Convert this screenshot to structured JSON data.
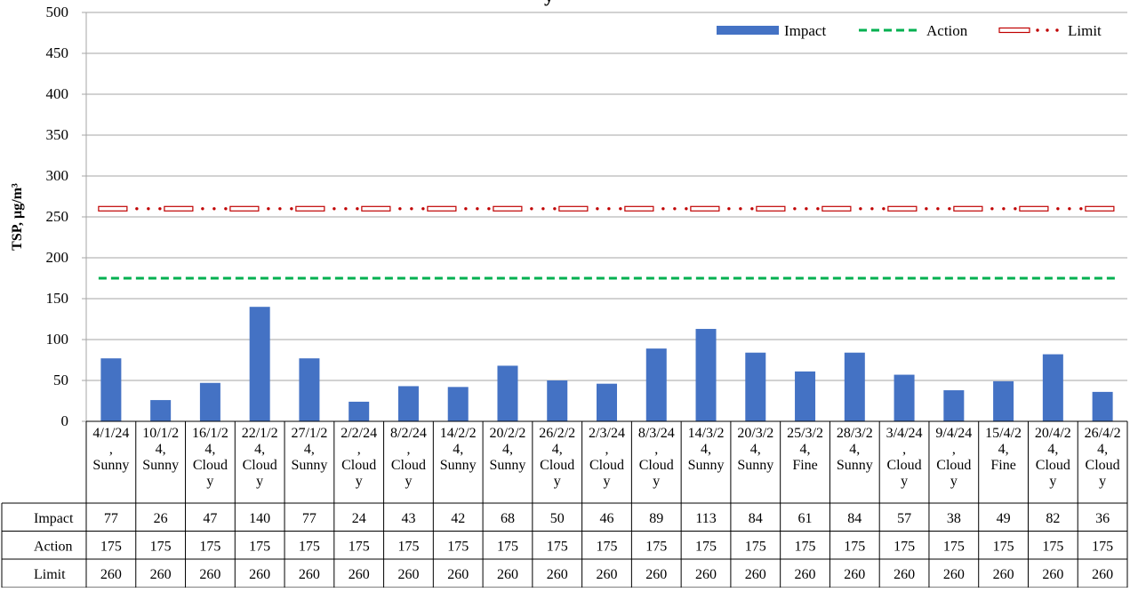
{
  "chart_data": {
    "type": "bar",
    "title": "",
    "ylabel": "TSP, µg/m³",
    "xlabel": "",
    "ylim": [
      0,
      500
    ],
    "yticks": [
      0,
      50,
      100,
      150,
      200,
      250,
      300,
      350,
      400,
      450,
      500
    ],
    "grid": true,
    "legend_position": "top-right",
    "categories": [
      [
        "4/1/24",
        ",",
        "Sunny"
      ],
      [
        "10/1/2",
        "4,",
        "Sunny"
      ],
      [
        "16/1/2",
        "4,",
        "Cloud",
        "y"
      ],
      [
        "22/1/2",
        "4,",
        "Cloud",
        "y"
      ],
      [
        "27/1/2",
        "4,",
        "Sunny"
      ],
      [
        "2/2/24",
        ",",
        "Cloud",
        "y"
      ],
      [
        "8/2/24",
        ",",
        "Cloud",
        "y"
      ],
      [
        "14/2/2",
        "4,",
        "Sunny"
      ],
      [
        "20/2/2",
        "4,",
        "Sunny"
      ],
      [
        "26/2/2",
        "4,",
        "Cloud",
        "y"
      ],
      [
        "2/3/24",
        ",",
        "Cloud",
        "y"
      ],
      [
        "8/3/24",
        ",",
        "Cloud",
        "y"
      ],
      [
        "14/3/2",
        "4,",
        "Sunny"
      ],
      [
        "20/3/2",
        "4,",
        "Sunny"
      ],
      [
        "25/3/2",
        "4,",
        "Fine"
      ],
      [
        "28/3/2",
        "4,",
        "Sunny"
      ],
      [
        "3/4/24",
        ",",
        "Cloud",
        "y"
      ],
      [
        "9/4/24",
        ",",
        "Cloud",
        "y"
      ],
      [
        "15/4/2",
        "4,",
        "Fine"
      ],
      [
        "20/4/2",
        "4,",
        "Cloud",
        "y"
      ],
      [
        "26/4/2",
        "4,",
        "Cloud",
        "y"
      ]
    ],
    "series": [
      {
        "name": "Impact",
        "kind": "bar",
        "color": "#4472C4",
        "values": [
          77,
          26,
          47,
          140,
          77,
          24,
          43,
          42,
          68,
          50,
          46,
          89,
          113,
          84,
          61,
          84,
          57,
          38,
          49,
          82,
          36
        ]
      },
      {
        "name": "Action",
        "kind": "dashed-line",
        "color": "#00B050",
        "values": [
          175,
          175,
          175,
          175,
          175,
          175,
          175,
          175,
          175,
          175,
          175,
          175,
          175,
          175,
          175,
          175,
          175,
          175,
          175,
          175,
          175
        ]
      },
      {
        "name": "Limit",
        "kind": "double-dot-line",
        "color": "#C00000",
        "values": [
          260,
          260,
          260,
          260,
          260,
          260,
          260,
          260,
          260,
          260,
          260,
          260,
          260,
          260,
          260,
          260,
          260,
          260,
          260,
          260,
          260
        ]
      }
    ],
    "partial_title_text": "y"
  }
}
